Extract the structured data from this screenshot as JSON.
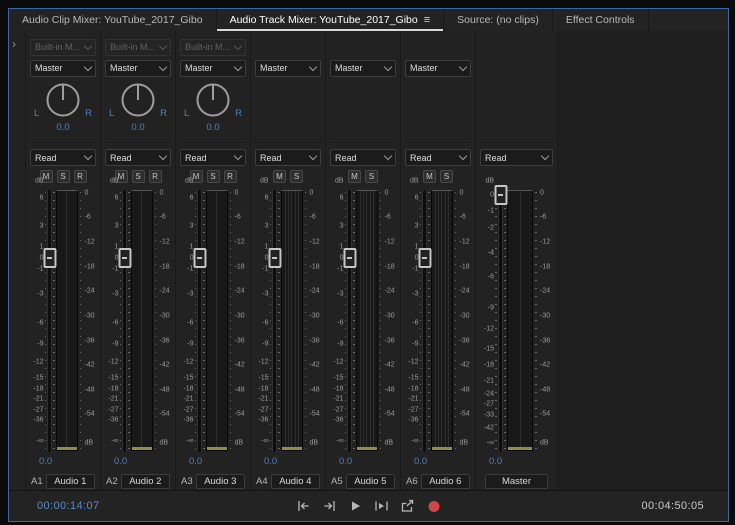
{
  "tabs": [
    {
      "label": "Audio Clip Mixer: YouTube_2017_Gibo",
      "active": false
    },
    {
      "label": "Audio Track Mixer: YouTube_2017_Gibo",
      "active": true,
      "menu_icon": "≡"
    },
    {
      "label": "Source: (no clips)",
      "active": false
    },
    {
      "label": "Effect Controls",
      "active": false
    }
  ],
  "expand_icon": "›",
  "colors": {
    "accent_blue": "#4d80b8",
    "record_red": "#cf4646",
    "panel_border_blue": "#3c67a1",
    "meter_floor_yellow": "#8f8f4b"
  },
  "scales": {
    "track_fader": [
      {
        "label": "dB",
        "pos": -3.5
      },
      {
        "label": "6",
        "pos": 2.8
      },
      {
        "label": "3",
        "pos": 13.8
      },
      {
        "label": "1",
        "pos": 21.6
      },
      {
        "label": "0",
        "pos": 25.8
      },
      {
        "label": "-1",
        "pos": 30
      },
      {
        "label": "-3",
        "pos": 39.7
      },
      {
        "label": "-6",
        "pos": 50.6
      },
      {
        "label": "-9",
        "pos": 58.6
      },
      {
        "label": "-12",
        "pos": 65.6
      },
      {
        "label": "-15",
        "pos": 71.5
      },
      {
        "label": "-18",
        "pos": 75.8
      },
      {
        "label": "-21",
        "pos": 79.7
      },
      {
        "label": "-27",
        "pos": 83.7
      },
      {
        "label": "-36",
        "pos": 87.7
      },
      {
        "label": "-∞",
        "pos": 95.6
      }
    ],
    "master_fader": [
      {
        "label": "dB",
        "pos": -3.5
      },
      {
        "label": "0",
        "pos": 1.8
      },
      {
        "label": "-1",
        "pos": 8
      },
      {
        "label": "-2",
        "pos": 14.6
      },
      {
        "label": "-4",
        "pos": 24
      },
      {
        "label": "-6",
        "pos": 33
      },
      {
        "label": "-9",
        "pos": 45
      },
      {
        "label": "-12",
        "pos": 52.8
      },
      {
        "label": "-15",
        "pos": 60.6
      },
      {
        "label": "-18",
        "pos": 66.9
      },
      {
        "label": "-21",
        "pos": 73
      },
      {
        "label": "-24",
        "pos": 77.7
      },
      {
        "label": "-27",
        "pos": 81.7
      },
      {
        "label": "-33",
        "pos": 85.7
      },
      {
        "label": "-42",
        "pos": 90.6
      },
      {
        "label": "-∞",
        "pos": 96.6
      }
    ],
    "meter": [
      {
        "label": "0",
        "pos": 1
      },
      {
        "label": "-6",
        "pos": 10.4
      },
      {
        "label": "-12",
        "pos": 19.8
      },
      {
        "label": "-18",
        "pos": 29.2
      },
      {
        "label": "-24",
        "pos": 38.6
      },
      {
        "label": "-30",
        "pos": 48
      },
      {
        "label": "-36",
        "pos": 57.4
      },
      {
        "label": "-42",
        "pos": 66.8
      },
      {
        "label": "-48",
        "pos": 76.2
      },
      {
        "label": "-54",
        "pos": 85.6
      },
      {
        "label": "dB",
        "pos": 96.5
      }
    ]
  },
  "channels": [
    {
      "id": "A1",
      "name": "Audio 1",
      "input": "Built-in M...",
      "output": "Master",
      "automation": "Read",
      "pan": "0.0",
      "volume": "0.0",
      "buttons": [
        "M",
        "S",
        "R"
      ],
      "meter_channels": 2,
      "fader_pos": 25.8,
      "type": "track"
    },
    {
      "id": "A2",
      "name": "Audio 2",
      "input": "Built-in M...",
      "output": "Master",
      "automation": "Read",
      "pan": "0.0",
      "volume": "0.0",
      "buttons": [
        "M",
        "S",
        "R"
      ],
      "meter_channels": 2,
      "fader_pos": 25.8,
      "type": "track"
    },
    {
      "id": "A3",
      "name": "Audio 3",
      "input": "Built-in M...",
      "output": "Master",
      "automation": "Read",
      "pan": "0.0",
      "volume": "0.0",
      "buttons": [
        "M",
        "S",
        "R"
      ],
      "meter_channels": 2,
      "fader_pos": 25.8,
      "type": "track"
    },
    {
      "id": "A4",
      "name": "Audio 4",
      "input": null,
      "output": "Master",
      "automation": "Read",
      "pan": null,
      "volume": "0.0",
      "buttons": [
        "M",
        "S"
      ],
      "meter_channels": 6,
      "fader_pos": 25.8,
      "type": "track"
    },
    {
      "id": "A5",
      "name": "Audio 5",
      "input": null,
      "output": "Master",
      "automation": "Read",
      "pan": null,
      "volume": "0.0",
      "buttons": [
        "M",
        "S"
      ],
      "meter_channels": 6,
      "fader_pos": 25.8,
      "type": "track"
    },
    {
      "id": "A6",
      "name": "Audio 6",
      "input": null,
      "output": "Master",
      "automation": "Read",
      "pan": null,
      "volume": "0.0",
      "buttons": [
        "M",
        "S"
      ],
      "meter_channels": 6,
      "fader_pos": 25.8,
      "type": "track"
    },
    {
      "id": "",
      "name": "Master",
      "input": null,
      "output": null,
      "automation": "Read",
      "pan": null,
      "volume": "0.0",
      "buttons": [],
      "meter_channels": 2,
      "fader_pos": 1.8,
      "type": "master"
    }
  ],
  "transport": {
    "buttons": [
      "go-to-in",
      "go-to-out",
      "play",
      "play-in-to-out",
      "loop",
      "record"
    ]
  },
  "status_bar": {
    "current_timecode": "00:00:14:07",
    "duration": "00:04:50:05"
  }
}
